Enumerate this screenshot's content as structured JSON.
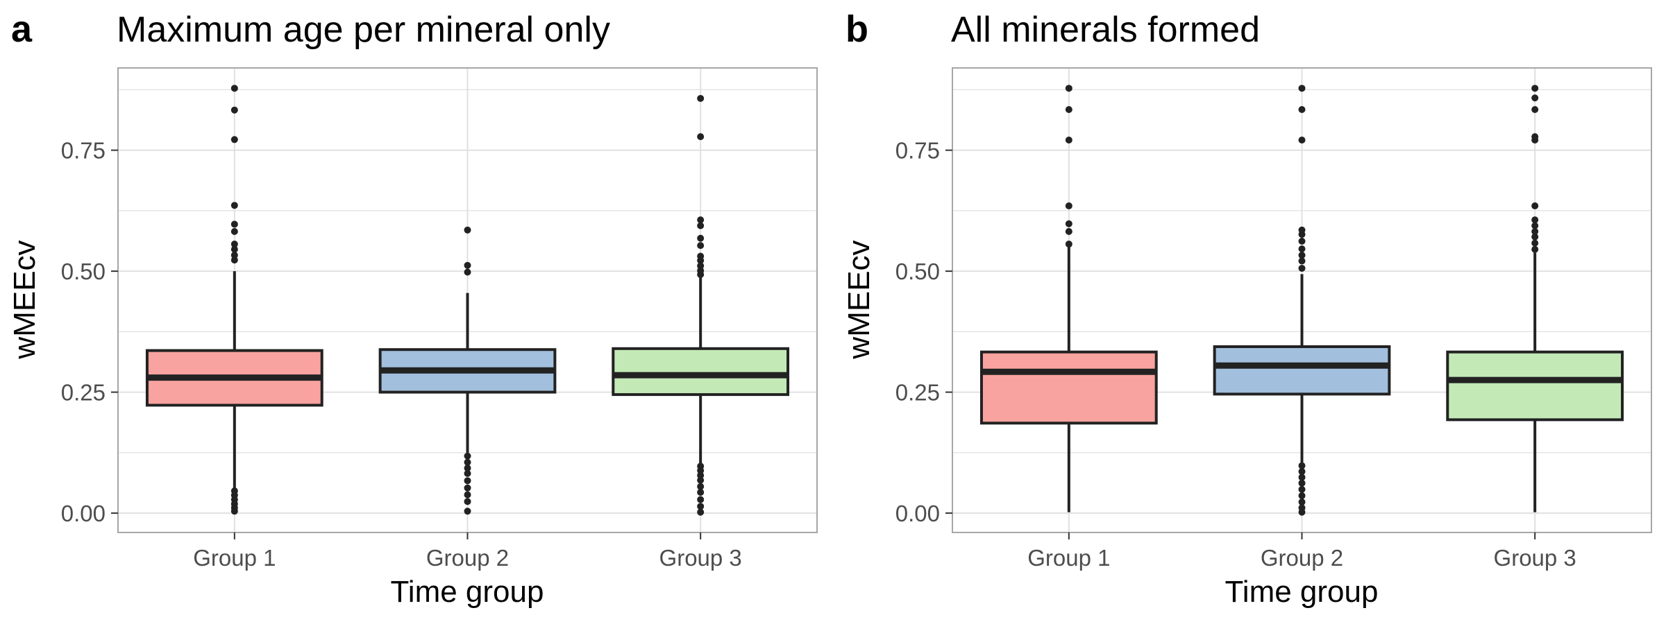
{
  "colors": {
    "group_fills": [
      "#F8A39F",
      "#A2BFDD",
      "#C3E9B7"
    ],
    "outline": "#222222",
    "grid": "#e0e0e0",
    "panel_border": "#a6a6a6"
  },
  "chart_data": [
    {
      "type": "box",
      "tag": "a",
      "title": "Maximum age per mineral only",
      "xlabel": "Time group",
      "ylabel": "wMEEcv",
      "categories": [
        "Group 1",
        "Group 2",
        "Group 3"
      ],
      "yticks": [
        "0.00",
        "0.25",
        "0.50",
        "0.75"
      ],
      "ylim": [
        -0.04,
        0.92
      ],
      "grid": true,
      "boxes": [
        {
          "category": "Group 1",
          "whisker_low": 0.05,
          "q1": 0.223,
          "median": 0.28,
          "q3": 0.336,
          "whisker_high": 0.5,
          "outliers": [
            0.878,
            0.833,
            0.772,
            0.636,
            0.597,
            0.582,
            0.556,
            0.545,
            0.533,
            0.523,
            0.046,
            0.037,
            0.028,
            0.019,
            0.011,
            0.004
          ]
        },
        {
          "category": "Group 2",
          "whisker_low": 0.125,
          "q1": 0.25,
          "median": 0.295,
          "q3": 0.338,
          "whisker_high": 0.455,
          "outliers": [
            0.585,
            0.512,
            0.498,
            0.118,
            0.105,
            0.093,
            0.082,
            0.067,
            0.052,
            0.038,
            0.024,
            0.004
          ]
        },
        {
          "category": "Group 3",
          "whisker_low": 0.102,
          "q1": 0.245,
          "median": 0.285,
          "q3": 0.34,
          "whisker_high": 0.488,
          "outliers": [
            0.857,
            0.778,
            0.606,
            0.594,
            0.568,
            0.553,
            0.531,
            0.522,
            0.511,
            0.501,
            0.493,
            0.097,
            0.088,
            0.078,
            0.068,
            0.055,
            0.043,
            0.028,
            0.014,
            0.002
          ]
        }
      ]
    },
    {
      "type": "box",
      "tag": "b",
      "title": "All minerals formed",
      "xlabel": "Time group",
      "ylabel": "wMEEcv",
      "categories": [
        "Group 1",
        "Group 2",
        "Group 3"
      ],
      "yticks": [
        "0.00",
        "0.25",
        "0.50",
        "0.75"
      ],
      "ylim": [
        -0.04,
        0.92
      ],
      "grid": true,
      "boxes": [
        {
          "category": "Group 1",
          "whisker_low": 0.002,
          "q1": 0.186,
          "median": 0.292,
          "q3": 0.333,
          "whisker_high": 0.55,
          "outliers": [
            0.878,
            0.834,
            0.771,
            0.635,
            0.598,
            0.582,
            0.556
          ]
        },
        {
          "category": "Group 2",
          "whisker_low": 0.102,
          "q1": 0.246,
          "median": 0.305,
          "q3": 0.344,
          "whisker_high": 0.494,
          "outliers": [
            0.878,
            0.834,
            0.771,
            0.585,
            0.576,
            0.562,
            0.546,
            0.533,
            0.521,
            0.506,
            0.098,
            0.086,
            0.074,
            0.062,
            0.049,
            0.036,
            0.023,
            0.011,
            0.002
          ]
        },
        {
          "category": "Group 3",
          "whisker_low": 0.002,
          "q1": 0.193,
          "median": 0.275,
          "q3": 0.333,
          "whisker_high": 0.538,
          "outliers": [
            0.878,
            0.858,
            0.834,
            0.778,
            0.771,
            0.635,
            0.606,
            0.594,
            0.582,
            0.571,
            0.558,
            0.545
          ]
        }
      ]
    }
  ]
}
